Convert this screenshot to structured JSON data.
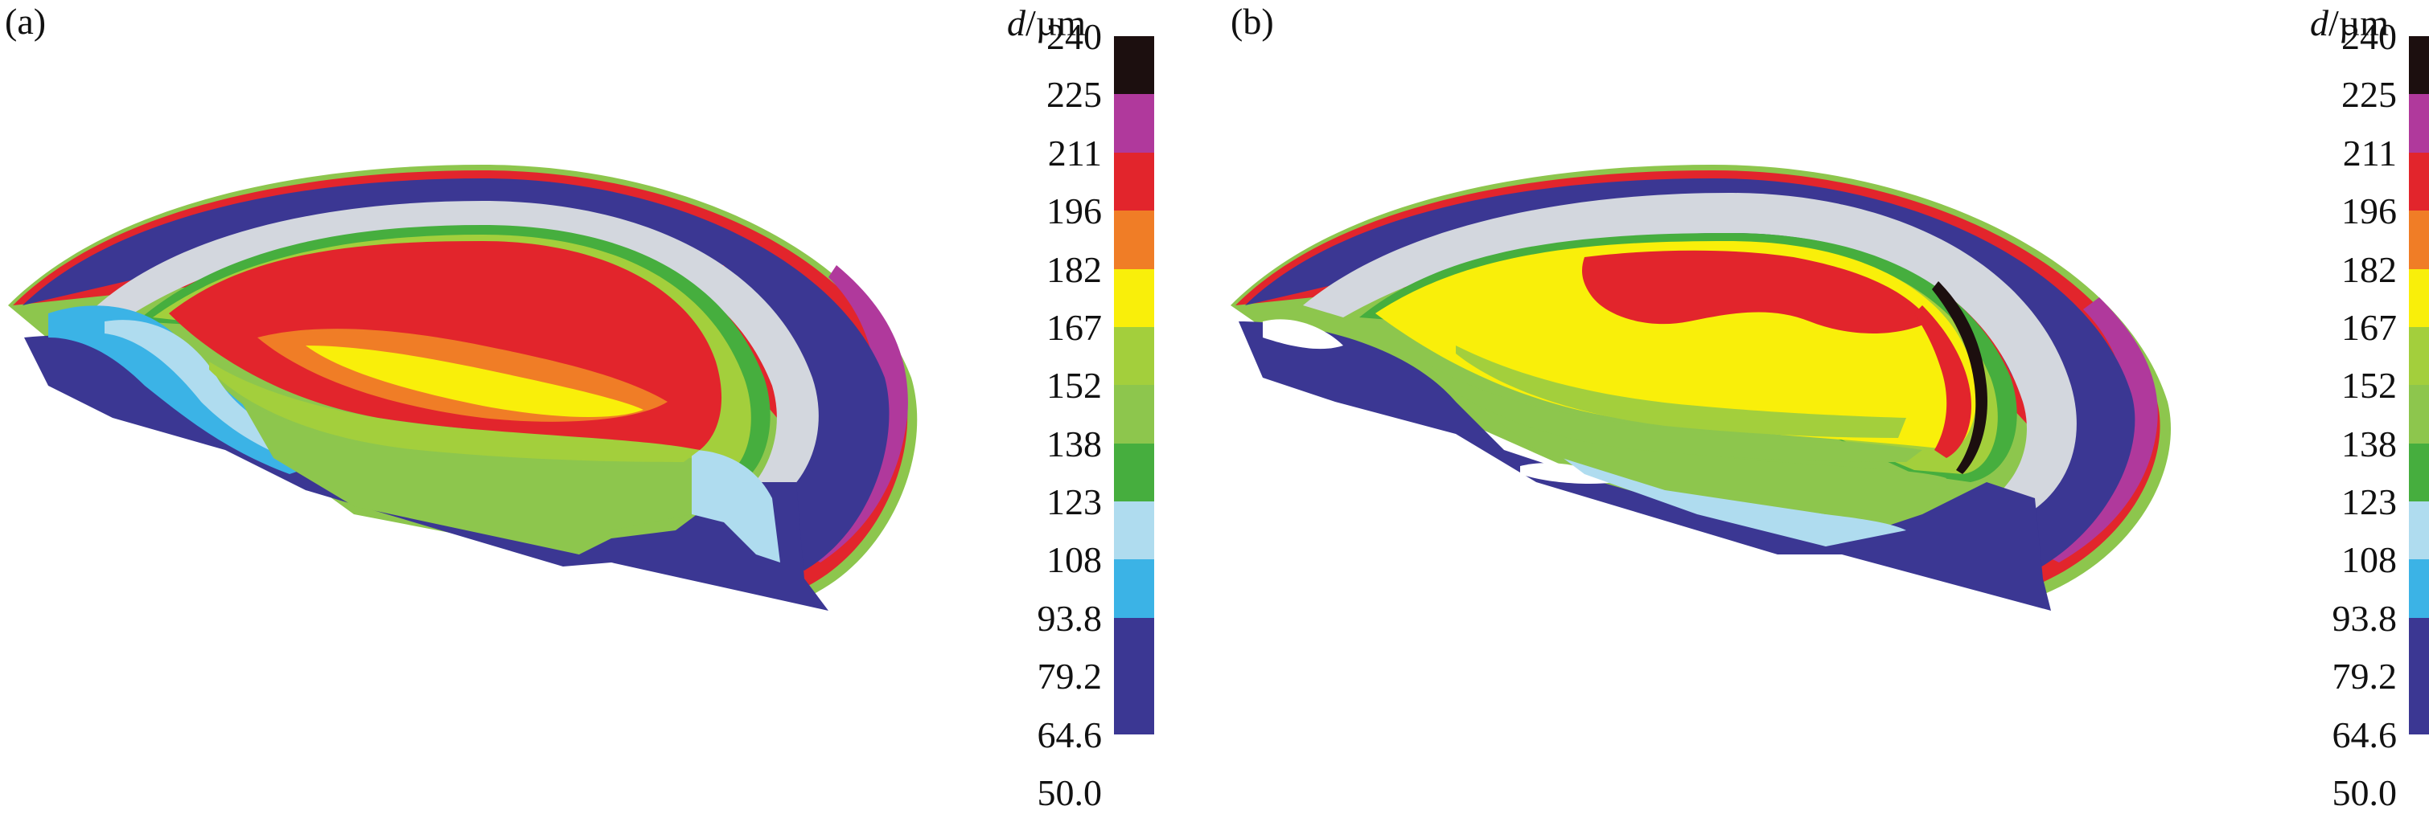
{
  "panel_a": {
    "label": "(a)"
  },
  "panel_b": {
    "label": "(b)"
  },
  "colorbar": {
    "symbol": "d",
    "unit": "/µm",
    "ticks": [
      "240",
      "225",
      "211",
      "196",
      "182",
      "167",
      "152",
      "138",
      "123",
      "108",
      "93.8",
      "79.2",
      "64.6",
      "50.0"
    ],
    "colors": [
      "#1c0f0f",
      "#b0399c",
      "#e2252c",
      "#f07d26",
      "#f9ef0a",
      "#a3cf3c",
      "#8dc64d",
      "#46ae3e",
      "#afdcef",
      "#3bb3e6",
      "#3b3793",
      "#3b3793",
      "#ffffff"
    ]
  },
  "colors": {
    "black": "#1c0f0f",
    "magenta": "#b0399c",
    "red": "#e2252c",
    "orange": "#f07d26",
    "yellow": "#f9ef0a",
    "lime": "#a3cf3c",
    "green": "#46ae3e",
    "lightblue": "#afdcef",
    "cyan": "#3bb3e6",
    "navy": "#3b3793",
    "white": "#ffffff",
    "silver": "#d3d7de"
  }
}
